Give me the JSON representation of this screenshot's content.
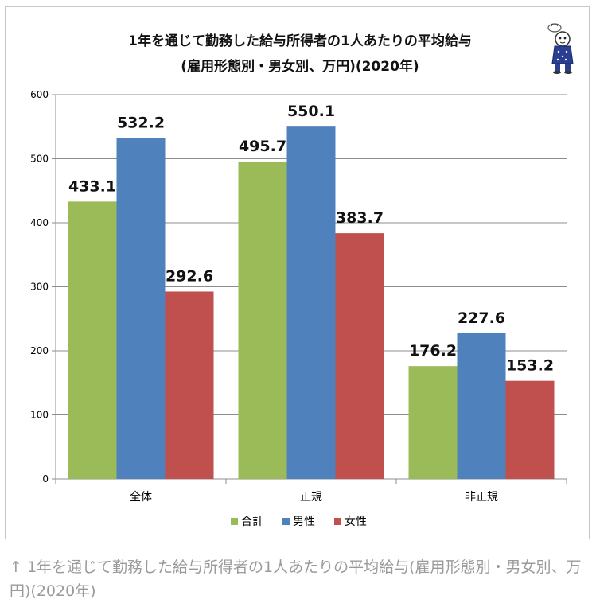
{
  "chart_data": {
    "type": "bar",
    "title_lines": [
      "1年を通じて勤務した給与所得者の1人あたりの平均給与",
      "(雇用形態別・男女別、万円)(2020年)"
    ],
    "categories": [
      "全体",
      "正規",
      "非正規"
    ],
    "series": [
      {
        "name": "合計",
        "color": "#9bbb59",
        "values": [
          433.1,
          495.7,
          176.2
        ]
      },
      {
        "name": "男性",
        "color": "#4f81bd",
        "values": [
          532.2,
          550.1,
          227.6
        ]
      },
      {
        "name": "女性",
        "color": "#c0504d",
        "values": [
          292.6,
          383.7,
          153.2
        ]
      }
    ],
    "ylim": [
      0,
      600
    ],
    "yticks": [
      0,
      100,
      200,
      300,
      400,
      500,
      600
    ],
    "grid": true,
    "legend_position": "bottom",
    "data_labels": true
  },
  "mascot_icon": "mascot-character-icon",
  "caption": "↑ 1年を通じて勤務した給与所得者の1人あたりの平均給与(雇用形態別・男女別、万円)(2020年)"
}
